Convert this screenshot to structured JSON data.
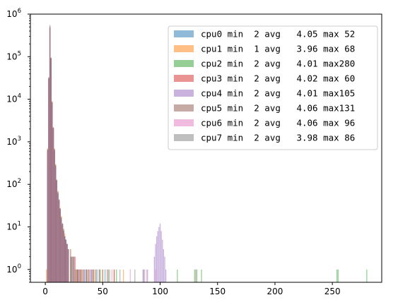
{
  "chart_data": {
    "type": "bar",
    "title": "",
    "xlabel": "",
    "ylabel": "",
    "xlim": [
      -13,
      293
    ],
    "ylim": [
      0.5,
      1000000
    ],
    "yscale": "log",
    "grid": false,
    "legend_placement": "top-right",
    "x_ticks": [
      0,
      50,
      100,
      150,
      200,
      250
    ],
    "x_tick_labels": [
      "0",
      "50",
      "100",
      "150",
      "200",
      "250"
    ],
    "y_ticks": [
      1,
      10,
      100,
      1000,
      10000,
      100000,
      1000000
    ],
    "y_tick_labels": [
      {
        "base": "10",
        "exp": "0"
      },
      {
        "base": "10",
        "exp": "1"
      },
      {
        "base": "10",
        "exp": "2"
      },
      {
        "base": "10",
        "exp": "3"
      },
      {
        "base": "10",
        "exp": "4"
      },
      {
        "base": "10",
        "exp": "5"
      },
      {
        "base": "10",
        "exp": "6"
      }
    ],
    "series": [
      {
        "name": "cpu0 min  2 avg   4.05 max 52",
        "color": "#1f77b4",
        "bins": [
          [
            2,
            600
          ],
          [
            3,
            30000
          ],
          [
            4,
            500000
          ],
          [
            5,
            90000
          ],
          [
            6,
            8000
          ],
          [
            7,
            2000
          ],
          [
            8,
            600
          ],
          [
            9,
            250
          ],
          [
            10,
            120
          ],
          [
            11,
            60
          ],
          [
            12,
            40
          ],
          [
            13,
            25
          ],
          [
            14,
            15
          ],
          [
            15,
            12
          ],
          [
            16,
            8
          ],
          [
            17,
            6
          ],
          [
            18,
            5
          ],
          [
            19,
            4
          ],
          [
            20,
            3
          ],
          [
            22,
            2
          ],
          [
            24,
            2
          ],
          [
            26,
            1
          ],
          [
            28,
            1
          ],
          [
            30,
            1
          ],
          [
            35,
            1
          ],
          [
            40,
            1
          ],
          [
            45,
            1
          ],
          [
            52,
            1
          ]
        ]
      },
      {
        "name": "cpu1 min  1 avg   3.96 max 68",
        "color": "#ff7f0e",
        "bins": [
          [
            1,
            1
          ],
          [
            2,
            700
          ],
          [
            3,
            32000
          ],
          [
            4,
            450000
          ],
          [
            5,
            95000
          ],
          [
            6,
            9000
          ],
          [
            7,
            2200
          ],
          [
            8,
            700
          ],
          [
            9,
            300
          ],
          [
            10,
            130
          ],
          [
            11,
            70
          ],
          [
            12,
            45
          ],
          [
            13,
            28
          ],
          [
            14,
            18
          ],
          [
            15,
            12
          ],
          [
            16,
            9
          ],
          [
            17,
            7
          ],
          [
            18,
            5
          ],
          [
            19,
            4
          ],
          [
            20,
            3
          ],
          [
            22,
            3
          ],
          [
            24,
            2
          ],
          [
            26,
            2
          ],
          [
            28,
            1
          ],
          [
            30,
            1
          ],
          [
            33,
            1
          ],
          [
            38,
            1
          ],
          [
            43,
            1
          ],
          [
            50,
            1
          ],
          [
            60,
            1
          ],
          [
            68,
            1
          ]
        ]
      },
      {
        "name": "cpu2 min  2 avg   4.01 max280",
        "color": "#2ca02c",
        "bins": [
          [
            2,
            650
          ],
          [
            3,
            31000
          ],
          [
            4,
            480000
          ],
          [
            5,
            88000
          ],
          [
            6,
            8500
          ],
          [
            7,
            2100
          ],
          [
            8,
            650
          ],
          [
            9,
            280
          ],
          [
            10,
            125
          ],
          [
            11,
            65
          ],
          [
            12,
            42
          ],
          [
            13,
            26
          ],
          [
            14,
            16
          ],
          [
            15,
            11
          ],
          [
            16,
            8
          ],
          [
            17,
            6
          ],
          [
            18,
            5
          ],
          [
            19,
            4
          ],
          [
            20,
            3
          ],
          [
            23,
            2
          ],
          [
            27,
            1
          ],
          [
            31,
            1
          ],
          [
            36,
            1
          ],
          [
            42,
            1
          ],
          [
            48,
            1
          ],
          [
            55,
            1
          ],
          [
            62,
            1
          ],
          [
            115,
            1
          ],
          [
            130,
            1
          ],
          [
            132,
            1
          ],
          [
            136,
            1
          ],
          [
            254,
            1
          ],
          [
            255,
            1
          ],
          [
            280,
            1
          ]
        ]
      },
      {
        "name": "cpu3 min  2 avg   4.02 max 60",
        "color": "#d62728",
        "bins": [
          [
            2,
            620
          ],
          [
            3,
            29000
          ],
          [
            4,
            470000
          ],
          [
            5,
            92000
          ],
          [
            6,
            8200
          ],
          [
            7,
            2050
          ],
          [
            8,
            620
          ],
          [
            9,
            260
          ],
          [
            10,
            118
          ],
          [
            11,
            62
          ],
          [
            12,
            41
          ],
          [
            13,
            24
          ],
          [
            14,
            15
          ],
          [
            15,
            11
          ],
          [
            16,
            8
          ],
          [
            17,
            6
          ],
          [
            18,
            5
          ],
          [
            19,
            4
          ],
          [
            20,
            3
          ],
          [
            22,
            2
          ],
          [
            25,
            2
          ],
          [
            28,
            1
          ],
          [
            31,
            1
          ],
          [
            36,
            1
          ],
          [
            41,
            1
          ],
          [
            47,
            1
          ],
          [
            54,
            1
          ],
          [
            60,
            1
          ]
        ]
      },
      {
        "name": "cpu4 min  2 avg   4.01 max105",
        "color": "#9467bd",
        "bins": [
          [
            2,
            610
          ],
          [
            3,
            30500
          ],
          [
            4,
            490000
          ],
          [
            5,
            89000
          ],
          [
            6,
            8100
          ],
          [
            7,
            2000
          ],
          [
            8,
            610
          ],
          [
            9,
            255
          ],
          [
            10,
            115
          ],
          [
            11,
            60
          ],
          [
            12,
            40
          ],
          [
            13,
            25
          ],
          [
            14,
            15
          ],
          [
            15,
            11
          ],
          [
            16,
            8
          ],
          [
            17,
            6
          ],
          [
            18,
            5
          ],
          [
            19,
            4
          ],
          [
            20,
            3
          ],
          [
            24,
            2
          ],
          [
            29,
            1
          ],
          [
            34,
            1
          ],
          [
            40,
            1
          ],
          [
            85,
            1
          ],
          [
            86,
            1
          ],
          [
            89,
            1
          ],
          [
            95,
            2
          ],
          [
            96,
            4
          ],
          [
            97,
            6
          ],
          [
            98,
            8
          ],
          [
            99,
            10
          ],
          [
            100,
            12
          ],
          [
            101,
            8
          ],
          [
            102,
            5
          ],
          [
            103,
            3
          ],
          [
            104,
            2
          ],
          [
            105,
            1
          ]
        ]
      },
      {
        "name": "cpu5 min  2 avg   4.06 max131",
        "color": "#8c564b",
        "bins": [
          [
            2,
            630
          ],
          [
            3,
            31500
          ],
          [
            4,
            550000
          ],
          [
            5,
            93000
          ],
          [
            6,
            8400
          ],
          [
            7,
            2150
          ],
          [
            8,
            640
          ],
          [
            9,
            270
          ],
          [
            10,
            122
          ],
          [
            11,
            64
          ],
          [
            12,
            43
          ],
          [
            13,
            27
          ],
          [
            14,
            17
          ],
          [
            15,
            12
          ],
          [
            16,
            8
          ],
          [
            17,
            6
          ],
          [
            18,
            5
          ],
          [
            19,
            4
          ],
          [
            20,
            3
          ],
          [
            23,
            2
          ],
          [
            27,
            1
          ],
          [
            32,
            1
          ],
          [
            38,
            1
          ],
          [
            44,
            1
          ],
          [
            50,
            1
          ],
          [
            131,
            1
          ]
        ]
      },
      {
        "name": "cpu6 min  2 avg   4.06 max 96",
        "color": "#e377c2",
        "bins": [
          [
            2,
            640
          ],
          [
            3,
            32500
          ],
          [
            4,
            520000
          ],
          [
            5,
            91000
          ],
          [
            6,
            8300
          ],
          [
            7,
            2120
          ],
          [
            8,
            630
          ],
          [
            9,
            265
          ],
          [
            10,
            120
          ],
          [
            11,
            63
          ],
          [
            12,
            42
          ],
          [
            13,
            26
          ],
          [
            14,
            16
          ],
          [
            15,
            11
          ],
          [
            16,
            8
          ],
          [
            17,
            6
          ],
          [
            18,
            5
          ],
          [
            19,
            4
          ],
          [
            20,
            3
          ],
          [
            22,
            2
          ],
          [
            26,
            2
          ],
          [
            30,
            1
          ],
          [
            34,
            1
          ],
          [
            39,
            1
          ],
          [
            58,
            1
          ],
          [
            74,
            1
          ],
          [
            88,
            1
          ],
          [
            96,
            1
          ]
        ]
      },
      {
        "name": "cpu7 min  2 avg   3.98 max 86",
        "color": "#7f7f7f",
        "bins": [
          [
            2,
            680
          ],
          [
            3,
            33000
          ],
          [
            4,
            460000
          ],
          [
            5,
            94000
          ],
          [
            6,
            8800
          ],
          [
            7,
            2180
          ],
          [
            8,
            680
          ],
          [
            9,
            290
          ],
          [
            10,
            128
          ],
          [
            11,
            68
          ],
          [
            12,
            44
          ],
          [
            13,
            27
          ],
          [
            14,
            17
          ],
          [
            15,
            12
          ],
          [
            16,
            9
          ],
          [
            17,
            6
          ],
          [
            18,
            5
          ],
          [
            19,
            4
          ],
          [
            20,
            3
          ],
          [
            22,
            3
          ],
          [
            25,
            2
          ],
          [
            29,
            1
          ],
          [
            33,
            1
          ],
          [
            37,
            1
          ],
          [
            42,
            1
          ],
          [
            47,
            1
          ],
          [
            56,
            1
          ],
          [
            65,
            1
          ],
          [
            78,
            1
          ],
          [
            86,
            1
          ]
        ]
      }
    ]
  }
}
